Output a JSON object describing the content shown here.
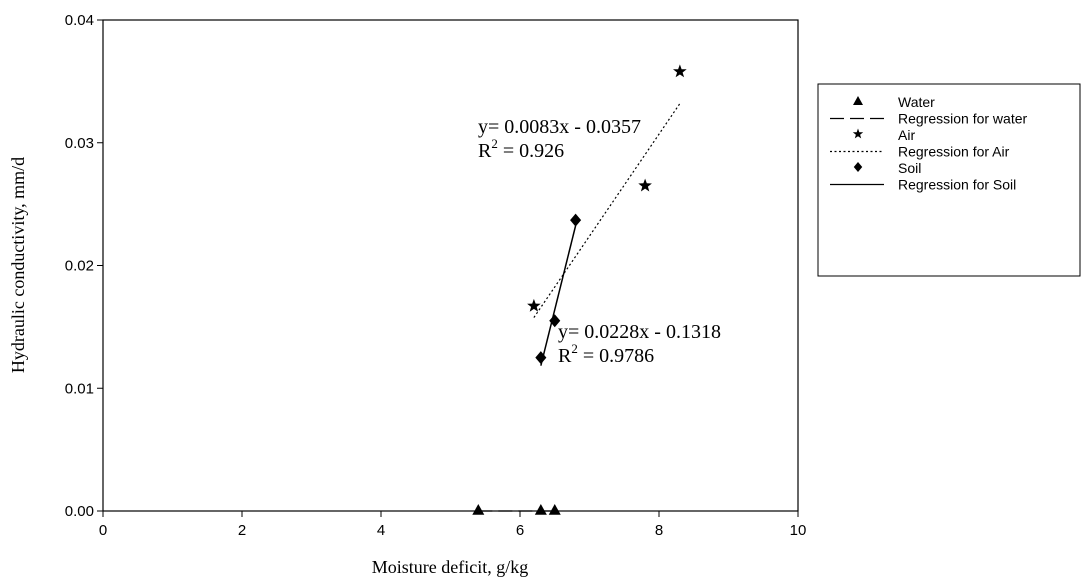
{
  "chart_data": {
    "type": "scatter",
    "title": "",
    "xlabel": "Moisture deficit, g/kg",
    "ylabel": "Hydraulic conductivity, mm/d",
    "xlim": [
      0,
      10
    ],
    "ylim": [
      0,
      0.04
    ],
    "xticks": [
      0,
      2,
      4,
      6,
      8,
      10
    ],
    "xtick_labels": [
      "0",
      "2",
      "4",
      "6",
      "8",
      "10"
    ],
    "yticks": [
      0,
      0.01,
      0.02,
      0.03,
      0.04
    ],
    "ytick_labels": [
      "0.00",
      "0.01",
      "0.02",
      "0.03",
      "0.04"
    ],
    "grid": false,
    "legend_position": "right",
    "series": [
      {
        "name": "Water",
        "marker": "triangle",
        "x": [
          5.4,
          6.3,
          6.5
        ],
        "y": [
          0.0,
          0.0,
          0.0
        ]
      },
      {
        "name": "Air",
        "marker": "star",
        "x": [
          6.2,
          7.8,
          8.3
        ],
        "y": [
          0.0167,
          0.0265,
          0.0358
        ]
      },
      {
        "name": "Soil",
        "marker": "diamond",
        "x": [
          6.3,
          6.5,
          6.8
        ],
        "y": [
          0.0125,
          0.0155,
          0.0237
        ]
      }
    ],
    "regressions": [
      {
        "name": "Regression for water",
        "line_style": "dashed",
        "slope": 0,
        "intercept": 0,
        "x_range": [
          5.4,
          6.5
        ]
      },
      {
        "name": "Regression for Air",
        "line_style": "dotted",
        "slope": 0.0083,
        "intercept": -0.0357,
        "x_range": [
          6.2,
          8.3
        ],
        "equation": "y= 0.0083x - 0.0357",
        "r2_prefix": "R",
        "r2_sup": "2",
        "r2_value": " = 0.926"
      },
      {
        "name": "Regression for Soil",
        "line_style": "solid",
        "slope": 0.0228,
        "intercept": -0.1318,
        "x_range": [
          6.3,
          6.8
        ],
        "equation": "y= 0.0228x - 0.1318",
        "r2_prefix": "R",
        "r2_sup": "2",
        "r2_value": " = 0.9786"
      }
    ],
    "legend": [
      {
        "label": "Water",
        "symbol": "triangle"
      },
      {
        "label": "Regression for water",
        "symbol": "dashed"
      },
      {
        "label": "Air",
        "symbol": "star"
      },
      {
        "label": "Regression for Air",
        "symbol": "dotted"
      },
      {
        "label": "Soil",
        "symbol": "diamond"
      },
      {
        "label": "Regression for Soil",
        "symbol": "solid"
      }
    ]
  }
}
